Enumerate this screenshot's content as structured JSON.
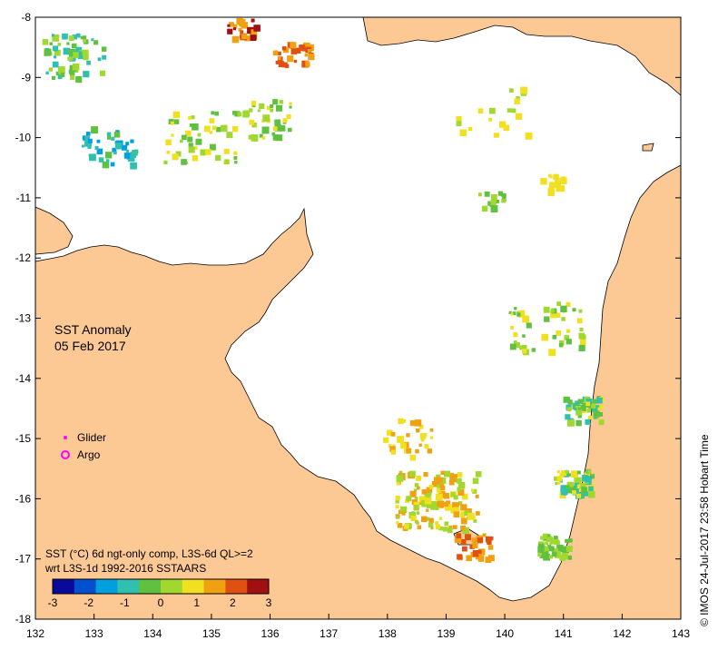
{
  "map": {
    "title_line1": "SST Anomaly",
    "title_line2": "05 Feb 2017",
    "legend_glider": "Glider",
    "legend_argo": "Argo",
    "caption_line1": "SST (°C) 6d ngt-only comp, L3S-6d QL>=2",
    "caption_line2": "wrt L3S-1d 1992-2016 SSTAARS",
    "credit": "© IMOS 24-Jul-2017 23:58 Hobart Time",
    "x_ticks": [
      "132",
      "133",
      "134",
      "135",
      "136",
      "137",
      "138",
      "139",
      "140",
      "141",
      "142",
      "143"
    ],
    "y_ticks": [
      "-8",
      "-9",
      "-10",
      "-11",
      "-12",
      "-13",
      "-14",
      "-15",
      "-16",
      "-17",
      "-18"
    ],
    "colorbar_ticks": [
      "-3",
      "-2",
      "-1",
      "0",
      "1",
      "2",
      "3"
    ],
    "lon_range": [
      132,
      143
    ],
    "lat_range": [
      -18,
      -8
    ],
    "colors": {
      "land": "#fcc894",
      "sea": "#ffffff",
      "glider": "#ff00ff",
      "argo": "#ff00ff",
      "colorbar": [
        "#0a0a9a",
        "#0050d0",
        "#00a0e0",
        "#30c0b0",
        "#60c040",
        "#a0d830",
        "#f0e020",
        "#f0a010",
        "#e05010",
        "#a01010"
      ]
    }
  }
}
